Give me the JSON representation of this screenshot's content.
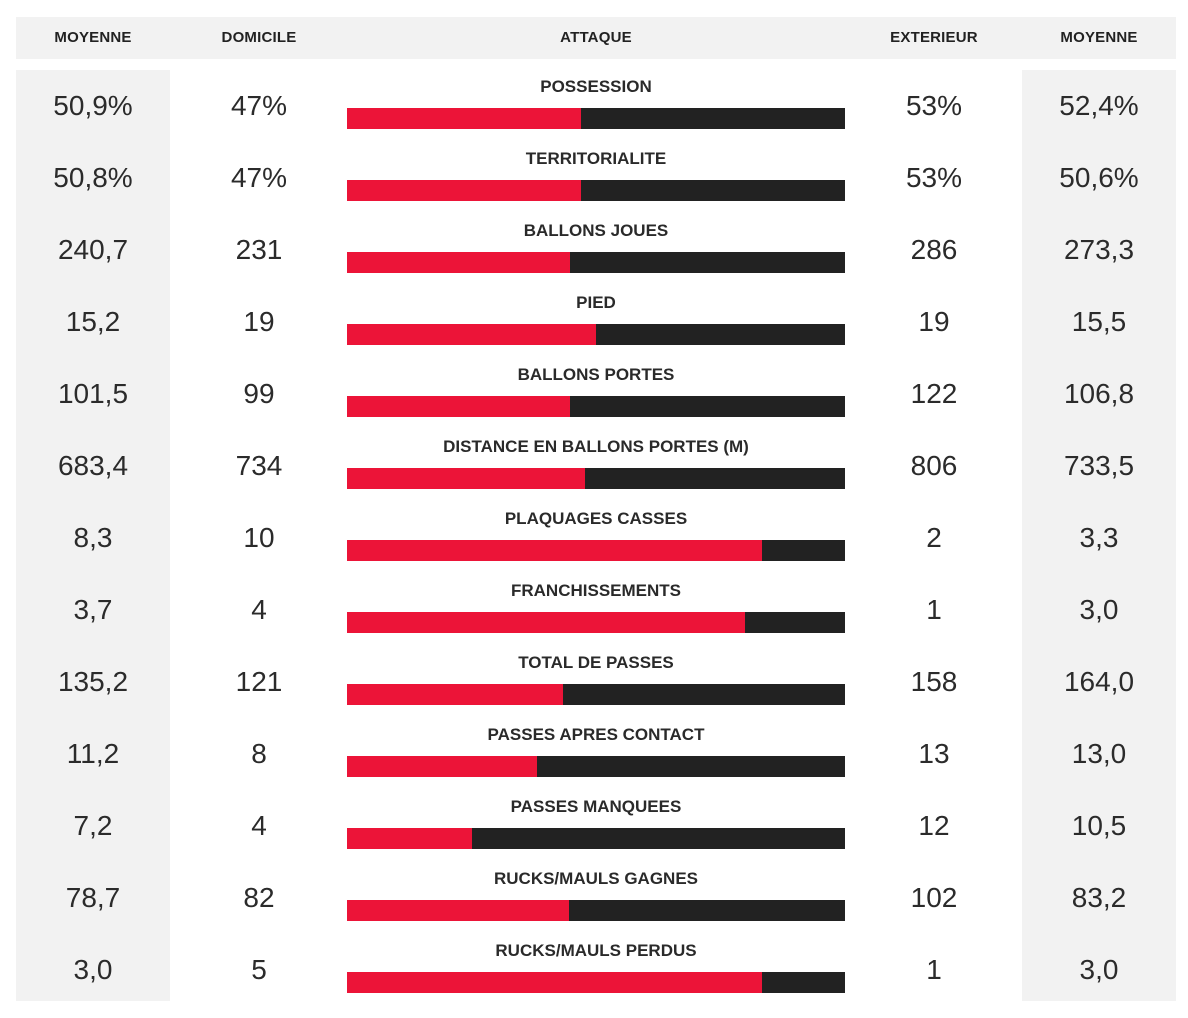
{
  "header": {
    "avg_home_label": "MOYENNE",
    "home_label": "DOMICILE",
    "center_label": "ATTAQUE",
    "away_label": "EXTERIEUR",
    "avg_away_label": "MOYENNE"
  },
  "colors": {
    "home": "#ec1438",
    "away": "#222222",
    "panel": "#f2f2f2"
  },
  "stats": [
    {
      "label": "POSSESSION",
      "avg_home": "50,9%",
      "home": "47%",
      "away": "53%",
      "avg_away": "52,4%",
      "home_share": 0.47
    },
    {
      "label": "TERRITORIALITE",
      "avg_home": "50,8%",
      "home": "47%",
      "away": "53%",
      "avg_away": "50,6%",
      "home_share": 0.47
    },
    {
      "label": "BALLONS JOUES",
      "avg_home": "240,7",
      "home": "231",
      "away": "286",
      "avg_away": "273,3",
      "home_share": 0.447
    },
    {
      "label": "PIED",
      "avg_home": "15,2",
      "home": "19",
      "away": "19",
      "avg_away": "15,5",
      "home_share": 0.5
    },
    {
      "label": "BALLONS PORTES",
      "avg_home": "101,5",
      "home": "99",
      "away": "122",
      "avg_away": "106,8",
      "home_share": 0.448
    },
    {
      "label": "DISTANCE EN BALLONS PORTES (M)",
      "avg_home": "683,4",
      "home": "734",
      "away": "806",
      "avg_away": "733,5",
      "home_share": 0.477
    },
    {
      "label": "PLAQUAGES CASSES",
      "avg_home": "8,3",
      "home": "10",
      "away": "2",
      "avg_away": "3,3",
      "home_share": 0.833
    },
    {
      "label": "FRANCHISSEMENTS",
      "avg_home": "3,7",
      "home": "4",
      "away": "1",
      "avg_away": "3,0",
      "home_share": 0.8
    },
    {
      "label": "TOTAL DE PASSES",
      "avg_home": "135,2",
      "home": "121",
      "away": "158",
      "avg_away": "164,0",
      "home_share": 0.434
    },
    {
      "label": "PASSES APRES CONTACT",
      "avg_home": "11,2",
      "home": "8",
      "away": "13",
      "avg_away": "13,0",
      "home_share": 0.381
    },
    {
      "label": "PASSES MANQUEES",
      "avg_home": "7,2",
      "home": "4",
      "away": "12",
      "avg_away": "10,5",
      "home_share": 0.25
    },
    {
      "label": "RUCKS/MAULS GAGNES",
      "avg_home": "78,7",
      "home": "82",
      "away": "102",
      "avg_away": "83,2",
      "home_share": 0.446
    },
    {
      "label": "RUCKS/MAULS PERDUS",
      "avg_home": "3,0",
      "home": "5",
      "away": "1",
      "avg_away": "3,0",
      "home_share": 0.833
    }
  ]
}
